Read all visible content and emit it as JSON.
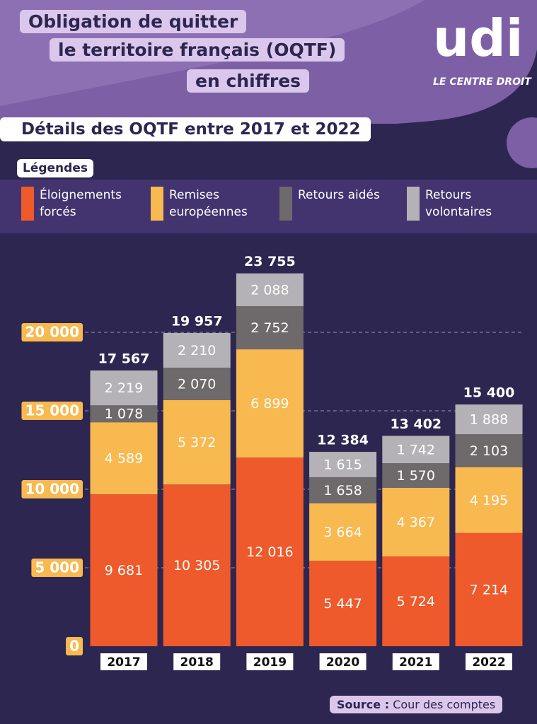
{
  "chart_data": {
    "type": "bar",
    "stacked": true,
    "title_lines": [
      "Obligation de quitter",
      "le territoire français (OQTF)",
      "en chiffres"
    ],
    "logo": "udi",
    "logo_tagline": "LE CENTRE DROIT",
    "subtitle": "Détails des OQTF entre 2017 et 2022",
    "legend_title": "Légendes",
    "categories": [
      "2017",
      "2018",
      "2019",
      "2020",
      "2021",
      "2022"
    ],
    "series": [
      {
        "name": "Éloignements forcés",
        "color": "#ee5a2b",
        "values": [
          9681,
          10305,
          12016,
          5447,
          5724,
          7214
        ],
        "value_labels": [
          "9 681",
          "10 305",
          "12 016",
          "5 447",
          "5 724",
          "7 214"
        ]
      },
      {
        "name": "Remises européennes",
        "color": "#f8b950",
        "values": [
          4589,
          5372,
          6899,
          3664,
          4367,
          4195
        ],
        "value_labels": [
          "4 589",
          "5 372",
          "6 899",
          "3 664",
          "4 367",
          "4 195"
        ]
      },
      {
        "name": "Retours aidés",
        "color": "#6e6a6c",
        "values": [
          1078,
          2070,
          2752,
          1658,
          1570,
          2103
        ],
        "value_labels": [
          "1 078",
          "2 070",
          "2 752",
          "1 658",
          "1 570",
          "2 103"
        ]
      },
      {
        "name": "Retours volontaires",
        "color": "#b4b2b6",
        "values": [
          2219,
          2210,
          2088,
          1615,
          1742,
          1888
        ],
        "value_labels": [
          "2 219",
          "2 210",
          "2 088",
          "1 615",
          "1 742",
          "1 888"
        ]
      }
    ],
    "totals": [
      17567,
      19957,
      23755,
      12384,
      13402,
      15400
    ],
    "total_labels": [
      "17 567",
      "19 957",
      "23 755",
      "12 384",
      "13 402",
      "15 400"
    ],
    "ylim": [
      0,
      25000
    ],
    "yticks": [
      0,
      {
        "value": 5000,
        "label": "5 000"
      },
      {
        "value": 10000,
        "label": "10 000"
      },
      {
        "value": 15000,
        "label": "15 000"
      },
      {
        "value": 20000,
        "label": "20 000"
      }
    ],
    "grid": true,
    "source_label": "Source :",
    "source": "Cour des comptes"
  }
}
